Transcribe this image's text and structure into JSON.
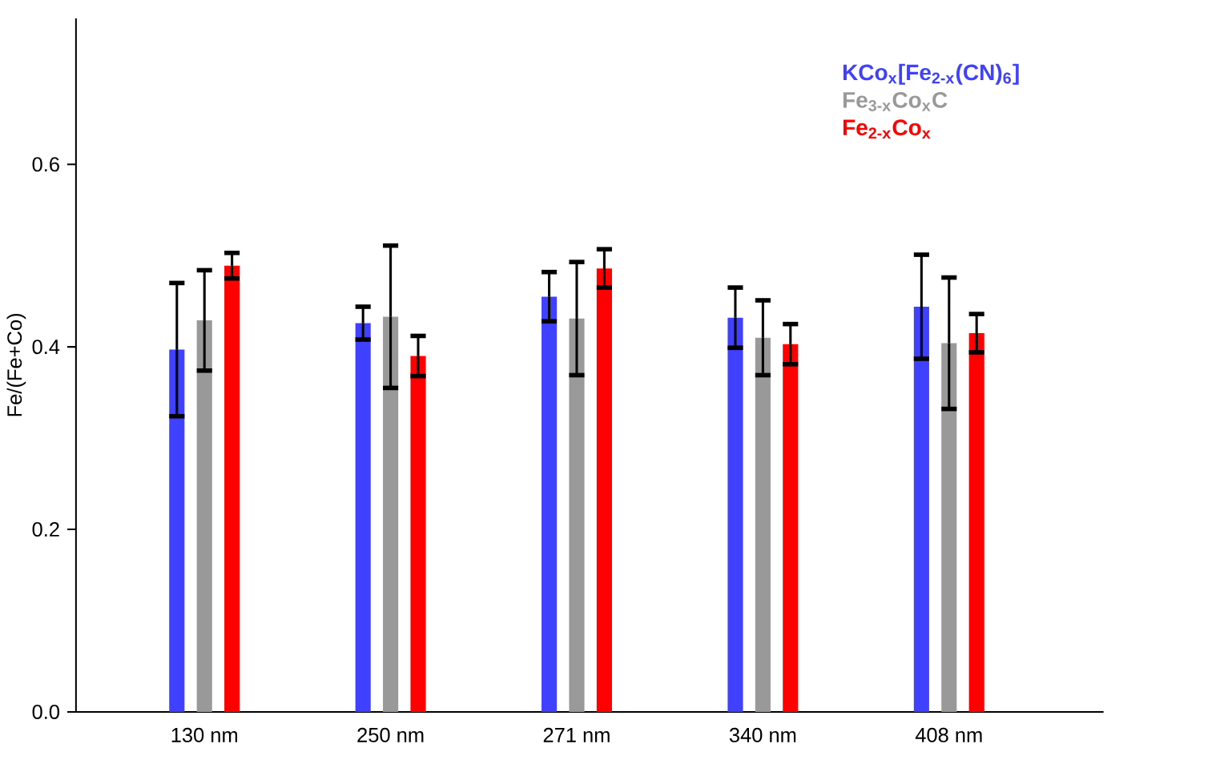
{
  "chart_data": {
    "type": "bar",
    "ylabel": "Fe/(Fe+Co)",
    "categories": [
      "130 nm",
      "250 nm",
      "271 nm",
      "340 nm",
      "408 nm"
    ],
    "ylim": [
      0,
      0.76
    ],
    "yticks": [
      {
        "value": 0,
        "label": "0.0"
      },
      0.2,
      0.4,
      0.6
    ],
    "series": [
      {
        "name": "KCo$_{x}$[Fe$_{2-x}$(CN)$_{6}$]",
        "color": "#4040ff",
        "values": [
          0.397,
          0.426,
          0.455,
          0.432,
          0.444
        ],
        "errors": [
          0.073,
          0.018,
          0.027,
          0.033,
          0.057
        ]
      },
      {
        "name": "Fe$_{3-x}$Co$_{x}$C",
        "color": "#999999",
        "values": [
          0.429,
          0.433,
          0.431,
          0.41,
          0.404
        ],
        "errors": [
          0.055,
          0.078,
          0.062,
          0.041,
          0.072
        ]
      },
      {
        "name": "Fe$_{2-x}$Co$_{x}$",
        "color": "#ff0000",
        "values": [
          0.489,
          0.39,
          0.486,
          0.403,
          0.415
        ],
        "errors": [
          0.014,
          0.022,
          0.021,
          0.022,
          0.021
        ]
      }
    ],
    "legend": "top right",
    "grid": false
  }
}
